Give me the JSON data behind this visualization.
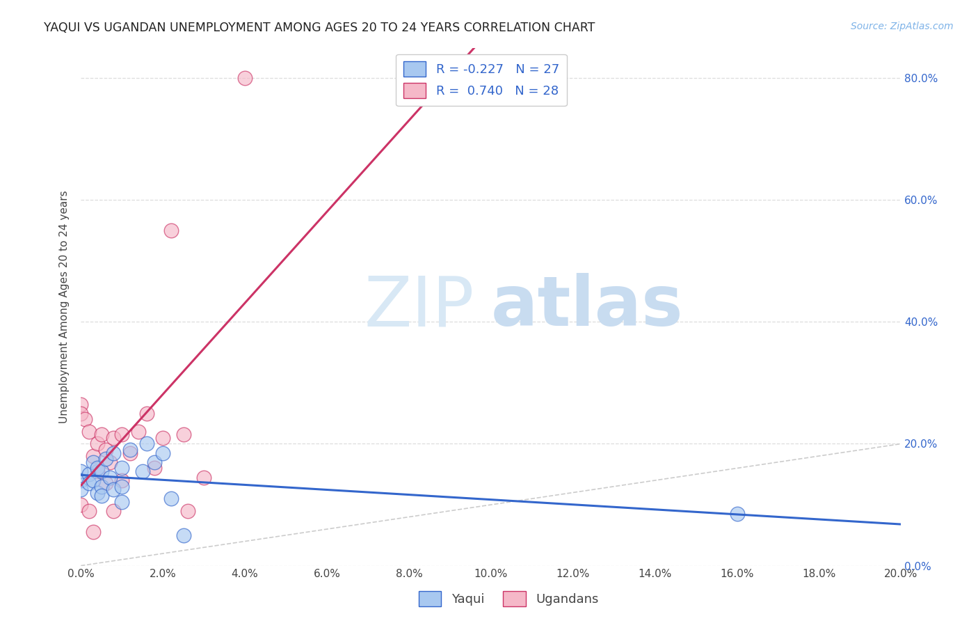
{
  "title": "YAQUI VS UGANDAN UNEMPLOYMENT AMONG AGES 20 TO 24 YEARS CORRELATION CHART",
  "source": "Source: ZipAtlas.com",
  "ylabel": "Unemployment Among Ages 20 to 24 years",
  "xlim": [
    0.0,
    0.2
  ],
  "ylim": [
    0.0,
    0.85
  ],
  "x_ticks": [
    0.0,
    0.02,
    0.04,
    0.06,
    0.08,
    0.1,
    0.12,
    0.14,
    0.16,
    0.18,
    0.2
  ],
  "y_ticks": [
    0.0,
    0.2,
    0.4,
    0.6,
    0.8
  ],
  "watermark_zip": "ZIP",
  "watermark_atlas": "atlas",
  "legend_r_blue": "-0.227",
  "legend_n_blue": "27",
  "legend_r_pink": "0.740",
  "legend_n_pink": "28",
  "blue_color": "#A8C8F0",
  "pink_color": "#F5B8C8",
  "blue_line_color": "#3366CC",
  "pink_line_color": "#CC3366",
  "diagonal_color": "#CCCCCC",
  "yaqui_x": [
    0.0,
    0.0,
    0.0,
    0.002,
    0.002,
    0.003,
    0.003,
    0.004,
    0.004,
    0.005,
    0.005,
    0.005,
    0.006,
    0.007,
    0.008,
    0.008,
    0.01,
    0.01,
    0.01,
    0.012,
    0.015,
    0.016,
    0.018,
    0.02,
    0.022,
    0.025,
    0.16
  ],
  "yaqui_y": [
    0.155,
    0.14,
    0.125,
    0.15,
    0.135,
    0.17,
    0.14,
    0.16,
    0.12,
    0.155,
    0.13,
    0.115,
    0.175,
    0.145,
    0.185,
    0.125,
    0.16,
    0.13,
    0.105,
    0.19,
    0.155,
    0.2,
    0.17,
    0.185,
    0.11,
    0.05,
    0.085
  ],
  "ugandan_x": [
    0.0,
    0.0,
    0.0,
    0.001,
    0.002,
    0.002,
    0.003,
    0.003,
    0.004,
    0.004,
    0.005,
    0.006,
    0.006,
    0.007,
    0.008,
    0.008,
    0.01,
    0.01,
    0.012,
    0.014,
    0.016,
    0.018,
    0.02,
    0.022,
    0.025,
    0.026,
    0.03,
    0.04
  ],
  "ugandan_y": [
    0.265,
    0.25,
    0.1,
    0.24,
    0.22,
    0.09,
    0.18,
    0.055,
    0.2,
    0.155,
    0.215,
    0.19,
    0.135,
    0.17,
    0.21,
    0.09,
    0.215,
    0.14,
    0.185,
    0.22,
    0.25,
    0.16,
    0.21,
    0.55,
    0.215,
    0.09,
    0.145,
    0.8
  ]
}
